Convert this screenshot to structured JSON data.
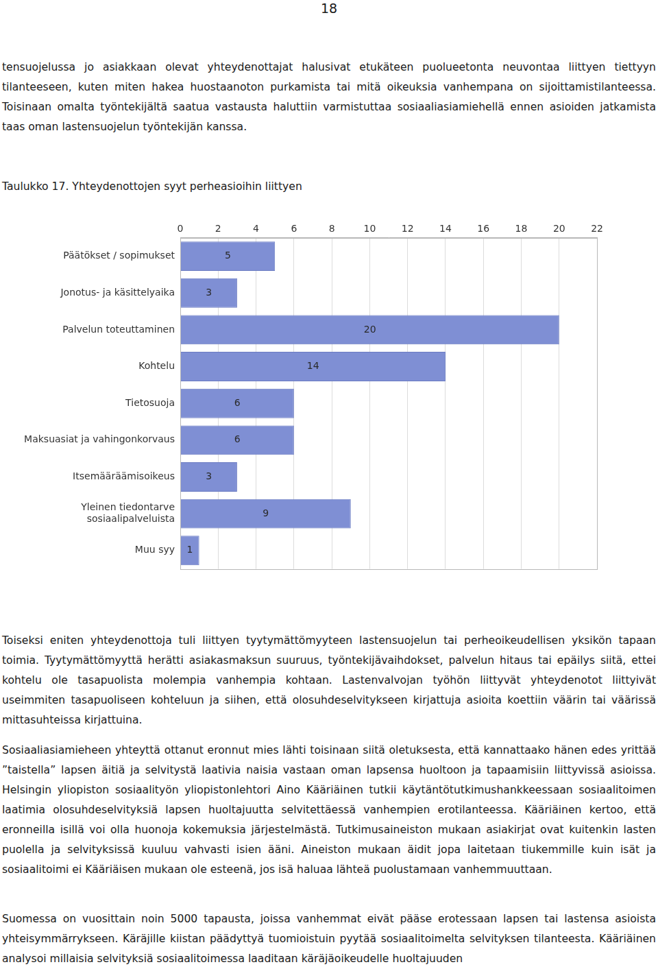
{
  "page_number": "18",
  "paragraphs_before": [
    "tensuojelussa jo asiakkaan olevat yhteydenottajat halusivat etukäteen puolueetonta neuvontaa liittyen tiettyyn tilanteeseen, kuten miten hakea huostaanoton purkamista tai mitä oikeuksia vanhempana on sijoittamistilanteessa. Toisinaan omalta työntekijältä saatua vastausta haluttiin varmistuttaa sosiaaliasiamiehellä ennen asioiden jatkamista taas oman lastensuojelun työntekijän kanssa."
  ],
  "caption": "Taulukko 17. Yhteydenottojen syyt perheasioihin liittyen",
  "chart_data": {
    "type": "bar",
    "orientation": "horizontal",
    "categories": [
      "Päätökset / sopimukset",
      "Jonotus- ja käsittelyaika",
      "Palvelun toteuttaminen",
      "Kohtelu",
      "Tietosuoja",
      "Maksuasiat ja vahingonkorvaus",
      "Itsemääräämisoikeus",
      "Yleinen tiedontarve sosiaalipalveluista",
      "Muu syy"
    ],
    "values": [
      5,
      3,
      20,
      14,
      6,
      6,
      3,
      9,
      1
    ],
    "color": "#7f8fd4",
    "xlim": [
      0,
      22
    ],
    "xticks": [
      0,
      2,
      4,
      6,
      8,
      10,
      12,
      14,
      16,
      18,
      20,
      22
    ],
    "grid": true,
    "data_labels": true
  },
  "paragraphs_after": [
    "Toiseksi eniten yhteydenottoja tuli liittyen tyytymättömyyteen lastensuojelun tai perheoikeudellisen yksikön tapaan toimia. Tyytymättömyyttä herätti asiakasmaksun suuruus, työntekijävaihdokset, palvelun hitaus tai epäilys siitä, ettei kohtelu ole tasapuolista molempia vanhempia kohtaan. Lastenvalvojan työhön liittyvät yhteydenotot liittyivät useimmiten tasapuoliseen kohteluun ja siihen, että olosuhdeselvitykseen kirjattuja asioita koettiin väärin tai väärissä mittasuhteissa kirjattuina.",
    "Sosiaaliasiamieheen yhteyttä ottanut eronnut mies lähti toisinaan siitä oletuksesta, että kannattaako hänen edes yrittää ”taistella” lapsen äitiä ja selvitystä laativia naisia vastaan oman lapsensa huoltoon ja tapaamisiin liittyvissä asioissa. Helsingin yliopiston sosiaalityön yliopistonlehtori Aino Kääriäinen tutkii käytäntötutkimushankkeessaan sosiaalitoimen laatimia olosuhdeselvityksiä lapsen huoltajuutta selvitettäessä vanhempien erotilanteessa. Kääriäinen kertoo, että eronneilla isillä voi olla huonoja kokemuksia järjestelmästä. Tutkimusaineiston mukaan asiakirjat ovat kuitenkin lasten puolella ja selvityksissä kuuluu vahvasti isien ääni. Aineiston mukaan äidit jopa laitetaan tiukemmille kuin isät ja sosiaalitoimi ei Kääriäisen mukaan ole esteenä, jos isä haluaa lähteä puolustamaan vanhemmuuttaan.",
    "Suomessa on vuosittain noin 5000 tapausta, joissa vanhemmat eivät pääse erotessaan lapsen tai lastensa asioista yhteisymmärrykseen. Käräjille kiistan päädyttyä tuomioistuin pyytää sosiaalitoimelta selvityksen tilanteesta. Kääriäinen analysoi millaisia selvityksiä sosiaalitoimessa laaditaan käräjäoikeudelle huoltajuuden"
  ]
}
